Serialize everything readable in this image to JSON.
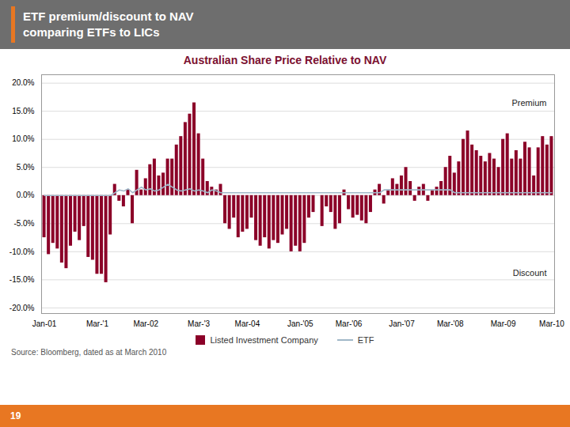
{
  "chart_data": {
    "type": "bar",
    "title": "Australian Share Price Relative to NAV",
    "subtitle": [
      "ETF premium/discount to NAV",
      "comparing ETFs to LICs"
    ],
    "caption": "Source: Bloomberg, dated as at March 2010",
    "annotations": [
      "Premium",
      "Discount",
      "19"
    ],
    "categories": [
      "Jan-01",
      null,
      null,
      null,
      null,
      null,
      null,
      null,
      null,
      null,
      null,
      null,
      "Mar-'1",
      null,
      null,
      null,
      null,
      null,
      null,
      null,
      null,
      null,
      null,
      "Mar-02",
      null,
      null,
      null,
      null,
      null,
      null,
      null,
      null,
      null,
      null,
      null,
      "Mar-'3",
      null,
      null,
      null,
      null,
      null,
      null,
      null,
      null,
      null,
      null,
      "Mar-04",
      null,
      null,
      null,
      null,
      null,
      null,
      null,
      null,
      null,
      null,
      null,
      "Jan-'05",
      null,
      null,
      null,
      null,
      null,
      null,
      null,
      null,
      null,
      null,
      "Mar-'06",
      null,
      null,
      null,
      null,
      null,
      null,
      null,
      null,
      null,
      null,
      null,
      "Jan-'07",
      null,
      null,
      null,
      null,
      null,
      null,
      null,
      null,
      null,
      null,
      "Mar-'08",
      null,
      null,
      null,
      null,
      null,
      null,
      null,
      null,
      null,
      null,
      null,
      "Mar-09",
      null,
      null,
      null,
      null,
      null,
      null,
      null,
      null,
      null,
      null,
      "Mar-10"
    ],
    "series": [
      {
        "name": "Listed Investment Company",
        "type": "bar",
        "color": "#8B0028",
        "values": [
          -0.075,
          -0.105,
          -0.085,
          -0.095,
          -0.12,
          -0.13,
          -0.09,
          -0.065,
          -0.08,
          -0.055,
          -0.11,
          -0.115,
          -0.14,
          -0.14,
          -0.155,
          -0.07,
          0.02,
          -0.01,
          -0.02,
          0.01,
          -0.05,
          0.045,
          0.01,
          0.03,
          0.055,
          0.065,
          0.035,
          0.04,
          0.065,
          0.065,
          0.09,
          0.105,
          0.13,
          0.145,
          0.165,
          0.11,
          0.065,
          0.025,
          0.015,
          0.01,
          0.02,
          -0.05,
          -0.06,
          -0.04,
          -0.075,
          -0.065,
          -0.06,
          -0.04,
          -0.08,
          -0.09,
          -0.075,
          -0.095,
          -0.08,
          -0.085,
          -0.07,
          -0.06,
          -0.1,
          -0.09,
          -0.1,
          -0.085,
          -0.04,
          -0.03,
          0.0,
          -0.055,
          -0.02,
          -0.03,
          -0.06,
          -0.05,
          0.01,
          -0.025,
          -0.04,
          -0.035,
          -0.045,
          -0.05,
          -0.03,
          0.01,
          0.02,
          -0.015,
          0.01,
          0.03,
          0.02,
          0.035,
          0.05,
          0.025,
          -0.01,
          0.015,
          0.02,
          -0.01,
          0.01,
          0.015,
          0.025,
          0.05,
          0.07,
          0.04,
          0.06,
          0.1,
          0.115,
          0.09,
          0.08,
          0.07,
          0.06,
          0.075,
          0.065,
          0.05,
          0.1,
          0.11,
          0.065,
          0.08,
          0.065,
          0.095,
          0.085,
          0.035,
          0.085,
          0.105,
          0.09,
          0.105
        ]
      },
      {
        "name": "ETF",
        "type": "line",
        "color": "#a0b8c8",
        "values": [
          0.0,
          0.0,
          0.0,
          0.0,
          0.0,
          0.0,
          0.0,
          0.0,
          0.0,
          0.0,
          0.0,
          0.0,
          0.0,
          0.0,
          0.0,
          0.0,
          0.005,
          0.01,
          0.008,
          0.012,
          0.005,
          0.01,
          0.015,
          0.01,
          0.012,
          0.008,
          0.01,
          0.015,
          0.02,
          0.015,
          0.01,
          0.008,
          0.01,
          0.012,
          0.008,
          0.01,
          0.008,
          0.005,
          0.01,
          0.008,
          0.005,
          0.005,
          0.005,
          0.005,
          0.005,
          0.005,
          0.005,
          0.005,
          0.005,
          0.005,
          0.005,
          0.005,
          0.005,
          0.005,
          0.005,
          0.005,
          0.005,
          0.005,
          0.005,
          0.005,
          0.005,
          0.005,
          0.005,
          0.005,
          0.005,
          0.005,
          0.005,
          0.005,
          0.005,
          0.005,
          0.005,
          0.005,
          0.005,
          0.005,
          0.005,
          0.005,
          0.005,
          0.01,
          0.01,
          0.01,
          0.01,
          0.01,
          0.01,
          0.01,
          0.01,
          0.01,
          0.01,
          0.01,
          0.01,
          0.01,
          0.01,
          0.01,
          0.01,
          0.005,
          0.005,
          0.005,
          0.005,
          0.005,
          0.005,
          0.005,
          0.005,
          0.005,
          0.005,
          0.005,
          0.005,
          0.005,
          0.005,
          0.005,
          0.005,
          0.005,
          0.005,
          0.005,
          0.005,
          0.005,
          0.005,
          0.005
        ]
      }
    ],
    "ylim": [
      -0.21,
      0.215
    ],
    "yticks": [
      {
        "value": -0.2,
        "label": "-20.0%"
      },
      {
        "value": -0.15,
        "label": "-15.0%"
      },
      {
        "value": -0.1,
        "label": "-10.0%"
      },
      {
        "value": -0.05,
        "label": "-5.0%"
      },
      {
        "value": 0.0,
        "label": "0.0%"
      },
      {
        "value": 0.05,
        "label": "5.0%"
      },
      {
        "value": 0.1,
        "label": "10.0%"
      },
      {
        "value": 0.15,
        "label": "15.0%"
      },
      {
        "value": 0.2,
        "label": "20.0%"
      }
    ],
    "grid": true,
    "legend": "bottom"
  }
}
